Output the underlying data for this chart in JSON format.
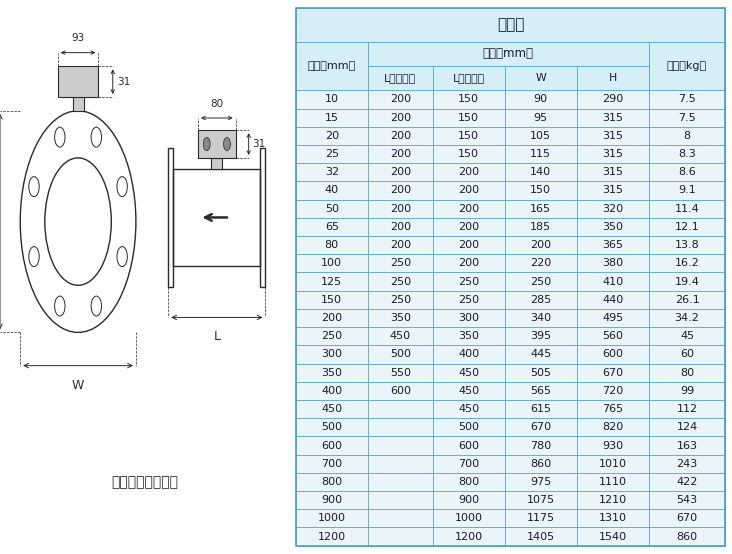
{
  "title": "分体式",
  "col_header_0": "口径（mm）",
  "col_header_dim": "尺寸（mm）",
  "col_header_weight": "重量（kg）",
  "sub_headers": [
    "L（四氟）",
    "L（橡胶）",
    "W",
    "H"
  ],
  "table_data": [
    [
      "10",
      "200",
      "150",
      "90",
      "290",
      "7.5"
    ],
    [
      "15",
      "200",
      "150",
      "95",
      "315",
      "7.5"
    ],
    [
      "20",
      "200",
      "150",
      "105",
      "315",
      "8"
    ],
    [
      "25",
      "200",
      "150",
      "115",
      "315",
      "8.3"
    ],
    [
      "32",
      "200",
      "200",
      "140",
      "315",
      "8.6"
    ],
    [
      "40",
      "200",
      "200",
      "150",
      "315",
      "9.1"
    ],
    [
      "50",
      "200",
      "200",
      "165",
      "320",
      "11.4"
    ],
    [
      "65",
      "200",
      "200",
      "185",
      "350",
      "12.1"
    ],
    [
      "80",
      "200",
      "200",
      "200",
      "365",
      "13.8"
    ],
    [
      "100",
      "250",
      "200",
      "220",
      "380",
      "16.2"
    ],
    [
      "125",
      "250",
      "250",
      "250",
      "410",
      "19.4"
    ],
    [
      "150",
      "250",
      "250",
      "285",
      "440",
      "26.1"
    ],
    [
      "200",
      "350",
      "300",
      "340",
      "495",
      "34.2"
    ],
    [
      "250",
      "450",
      "350",
      "395",
      "560",
      "45"
    ],
    [
      "300",
      "500",
      "400",
      "445",
      "600",
      "60"
    ],
    [
      "350",
      "550",
      "450",
      "505",
      "670",
      "80"
    ],
    [
      "400",
      "600",
      "450",
      "565",
      "720",
      "99"
    ],
    [
      "450",
      "",
      "450",
      "615",
      "765",
      "112"
    ],
    [
      "500",
      "",
      "500",
      "670",
      "820",
      "124"
    ],
    [
      "600",
      "",
      "600",
      "780",
      "930",
      "163"
    ],
    [
      "700",
      "",
      "700",
      "860",
      "1010",
      "243"
    ],
    [
      "800",
      "",
      "800",
      "975",
      "1110",
      "422"
    ],
    [
      "900",
      "",
      "900",
      "1075",
      "1210",
      "543"
    ],
    [
      "1000",
      "",
      "1000",
      "1175",
      "1310",
      "670"
    ],
    [
      "1200",
      "",
      "1200",
      "1405",
      "1540",
      "860"
    ]
  ],
  "bg_color_header": "#d6eef5",
  "bg_color_row": "#eaf5fa",
  "border_color": "#4aa0c0",
  "text_color": "#1a1a2e",
  "diagram_label": "法兰形（分体型）"
}
